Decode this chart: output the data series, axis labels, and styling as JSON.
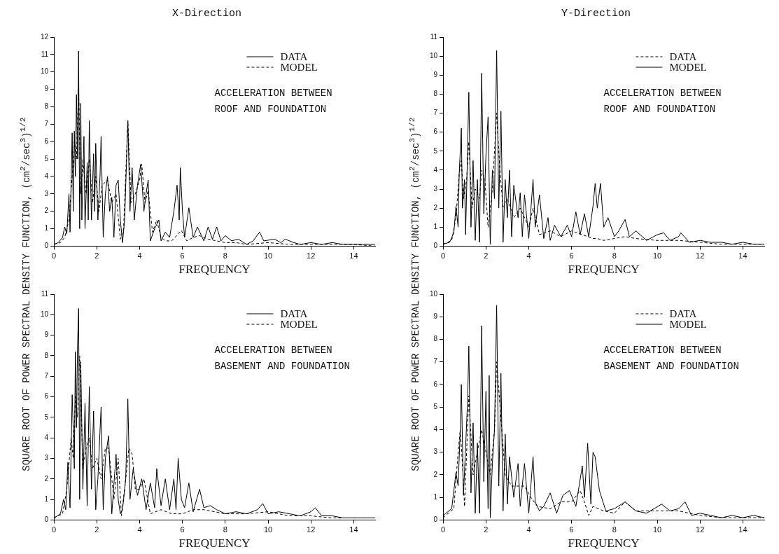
{
  "chart_data": [
    {
      "type": "line",
      "title": "X-Direction",
      "xlabel": "FREQUENCY",
      "ylabel": "SQUARE ROOT OF POWER SPECTRAL DENSITY FUNCTION,  (cm$^{2}$/sec$^{3}$)$^{1/2}$",
      "legend": "top right",
      "grid": false,
      "annotations": [
        "ACCELERATION BETWEEN\nROOF AND FOUNDATION"
      ],
      "xlim": [
        0,
        15
      ],
      "xticks": [
        0,
        2,
        4,
        6,
        8,
        10,
        12,
        14
      ],
      "ylim": [
        0,
        12
      ],
      "yticks": [
        0,
        1,
        2,
        3,
        4,
        5,
        6,
        7,
        8,
        9,
        10,
        11,
        12
      ],
      "series": [
        {
          "name": "DATA",
          "color": "#000000",
          "line_style": "solid",
          "x": [
            0,
            0.2,
            0.4,
            0.5,
            0.6,
            0.7,
            0.75,
            0.85,
            0.9,
            0.95,
            1.0,
            1.05,
            1.1,
            1.15,
            1.2,
            1.25,
            1.3,
            1.4,
            1.45,
            1.55,
            1.6,
            1.65,
            1.75,
            1.85,
            1.9,
            1.95,
            2.05,
            2.15,
            2.2,
            2.3,
            2.4,
            2.5,
            2.6,
            2.7,
            2.8,
            2.9,
            3.0,
            3.1,
            3.2,
            3.3,
            3.45,
            3.55,
            3.65,
            3.75,
            3.9,
            4.05,
            4.2,
            4.3,
            4.4,
            4.5,
            4.7,
            4.9,
            5.0,
            5.2,
            5.4,
            5.6,
            5.75,
            5.85,
            5.9,
            6.0,
            6.1,
            6.3,
            6.5,
            6.7,
            7.0,
            7.2,
            7.4,
            7.6,
            7.8,
            8.0,
            8.3,
            8.6,
            9.0,
            9.3,
            9.6,
            9.8,
            10.3,
            10.6,
            10.8,
            11.2,
            11.5,
            12.0,
            12.5,
            13.0,
            13.5,
            14.0,
            14.5,
            15.0
          ],
          "values": [
            0.1,
            0.2,
            0.5,
            1.1,
            0.7,
            3.0,
            0.8,
            6.5,
            2,
            6.6,
            4,
            8.7,
            5,
            11.2,
            1,
            8.2,
            1.5,
            6.3,
            1.0,
            4.8,
            1.5,
            7.2,
            1.5,
            5.3,
            2,
            5.9,
            1.5,
            4,
            6.3,
            0.5,
            3,
            4.0,
            2,
            2.8,
            0.5,
            3.5,
            3.8,
            1.5,
            0.2,
            1.5,
            7.2,
            2,
            4.5,
            1.5,
            3.5,
            4.7,
            2,
            3,
            3.8,
            0.3,
            1,
            1.5,
            0.3,
            0.8,
            0.5,
            2.0,
            3.5,
            1.5,
            4.5,
            2,
            0.5,
            2.2,
            0.5,
            1.1,
            0.3,
            1.1,
            0.4,
            1.1,
            0.3,
            0.6,
            0.3,
            0.4,
            0.1,
            0.3,
            0.8,
            0.3,
            0.4,
            0.2,
            0.4,
            0.2,
            0.1,
            0.2,
            0.1,
            0.2,
            0.1,
            0.1,
            0.1,
            0.1
          ]
        },
        {
          "name": "MODEL",
          "color": "#000000",
          "line_style": "dashed",
          "x": [
            0,
            0.3,
            0.5,
            0.7,
            0.85,
            0.95,
            1.05,
            1.15,
            1.25,
            1.35,
            1.5,
            1.65,
            1.8,
            1.95,
            2.1,
            2.25,
            2.5,
            2.7,
            2.9,
            3.1,
            3.25,
            3.45,
            3.6,
            3.8,
            4.0,
            4.1,
            4.25,
            4.4,
            4.6,
            4.8,
            5.0,
            5.2,
            5.5,
            5.8,
            5.95,
            6.2,
            6.5,
            6.8,
            7.2,
            7.6,
            8.0,
            8.5,
            9.0,
            10,
            11,
            12,
            13,
            14,
            15
          ],
          "values": [
            0.1,
            0.2,
            0.5,
            1.5,
            4,
            6,
            5,
            9,
            3,
            5,
            3,
            5,
            2.5,
            4,
            2,
            3.5,
            3.8,
            2.5,
            3,
            0.4,
            1,
            7.2,
            2.5,
            3,
            3.8,
            4.7,
            2.5,
            3.2,
            0.8,
            1.5,
            0.5,
            0.3,
            0.3,
            0.7,
            0.9,
            0.3,
            0.5,
            0.6,
            0.4,
            0.3,
            0.2,
            0.2,
            0.1,
            0.2,
            0.1,
            0.1,
            0.1,
            0.1,
            0
          ]
        }
      ]
    },
    {
      "type": "line",
      "title": "Y-Direction",
      "xlabel": "FREQUENCY",
      "ylabel": "SQUARE ROOT OF POWER SPECTRAL DENSITY FUNCTION,  (cm$^{2}$/sec$^{3}$)$^{1/2}$",
      "legend": "top right",
      "grid": false,
      "annotations": [
        "ACCELERATION BETWEEN\nROOF AND FOUNDATION"
      ],
      "xlim": [
        0,
        15
      ],
      "xticks": [
        0,
        2,
        4,
        6,
        8,
        10,
        12,
        14
      ],
      "ylim": [
        0,
        11
      ],
      "yticks": [
        0,
        1,
        2,
        3,
        4,
        5,
        6,
        7,
        8,
        9,
        10,
        11
      ],
      "series": [
        {
          "name": "DATA",
          "color": "#000000",
          "line_style": "dashed",
          "x": [
            0,
            0.4,
            0.6,
            0.75,
            0.85,
            0.95,
            1.1,
            1.2,
            1.35,
            1.5,
            1.7,
            1.8,
            1.95,
            2.1,
            2.3,
            2.5,
            2.65,
            2.8,
            3.0,
            3.3,
            3.6,
            4.0,
            4.2,
            4.5,
            5.0,
            5.5,
            6.0,
            6.5,
            7.0,
            7.2,
            7.5,
            8.0,
            8.5,
            9,
            10,
            11,
            12,
            13,
            14,
            15
          ],
          "values": [
            0.1,
            0.3,
            1.5,
            3.8,
            4.5,
            2.5,
            3.5,
            5.5,
            2,
            3,
            2.5,
            4,
            3.5,
            1,
            3,
            7,
            4,
            2,
            2.5,
            1.5,
            2,
            1,
            2,
            0.6,
            0.8,
            0.5,
            0.8,
            0.6,
            0.4,
            0.4,
            0.3,
            0.4,
            0.5,
            0.4,
            0.3,
            0.3,
            0.2,
            0.1,
            0.1,
            0.1
          ]
        },
        {
          "name": "MODEL",
          "color": "#000000",
          "line_style": "solid",
          "x": [
            0,
            0.3,
            0.5,
            0.6,
            0.7,
            0.75,
            0.85,
            0.9,
            1.0,
            1.05,
            1.15,
            1.2,
            1.3,
            1.4,
            1.5,
            1.6,
            1.7,
            1.8,
            1.9,
            2.0,
            2.1,
            2.2,
            2.3,
            2.4,
            2.5,
            2.6,
            2.7,
            2.8,
            2.9,
            3.0,
            3.1,
            3.2,
            3.3,
            3.5,
            3.6,
            3.7,
            3.8,
            4.0,
            4.2,
            4.3,
            4.5,
            4.7,
            4.9,
            5.0,
            5.2,
            5.5,
            5.8,
            6.0,
            6.2,
            6.4,
            6.6,
            6.8,
            7.0,
            7.1,
            7.2,
            7.35,
            7.5,
            7.7,
            8.0,
            8.2,
            8.5,
            8.7,
            9.0,
            9.5,
            10.0,
            10.3,
            10.6,
            11.0,
            11.1,
            11.5,
            12,
            12.5,
            13,
            13.5,
            14,
            14.5,
            15
          ],
          "values": [
            0.1,
            0.2,
            0.7,
            2.1,
            1.0,
            3.8,
            6.2,
            2,
            3.5,
            0.6,
            5.5,
            8.1,
            1,
            4.5,
            0.3,
            3.5,
            0.2,
            9.1,
            1.7,
            4.8,
            6.8,
            0.1,
            4,
            2.5,
            10.3,
            2,
            7.1,
            0.2,
            3.5,
            1.5,
            4,
            0.5,
            3.2,
            1.5,
            2.8,
            0.5,
            2.7,
            0.4,
            3.5,
            1,
            2.7,
            0.4,
            1.5,
            0.3,
            1.1,
            0.5,
            1.1,
            0.5,
            1.8,
            0.6,
            1.7,
            0.5,
            2.1,
            3.3,
            2,
            3.3,
            1.0,
            1.5,
            0.5,
            0.8,
            1.4,
            0.5,
            0.8,
            0.3,
            0.6,
            0.7,
            0.3,
            0.5,
            0.7,
            0.2,
            0.3,
            0.2,
            0.2,
            0.1,
            0.2,
            0.1,
            0.1
          ]
        }
      ]
    },
    {
      "type": "line",
      "xlabel": "FREQUENCY",
      "legend": "top right",
      "grid": false,
      "annotations": [
        "ACCELERATION BETWEEN\nBASEMENT AND FOUNDATION"
      ],
      "xlim": [
        0,
        15
      ],
      "xticks": [
        0,
        2,
        4,
        6,
        8,
        10,
        12,
        14
      ],
      "ylim": [
        0,
        11
      ],
      "yticks": [
        0,
        1,
        2,
        3,
        4,
        5,
        6,
        7,
        8,
        9,
        10,
        11
      ],
      "series": [
        {
          "name": "DATA",
          "color": "#000000",
          "line_style": "solid",
          "x": [
            0,
            0.3,
            0.45,
            0.55,
            0.65,
            0.75,
            0.85,
            0.95,
            1.0,
            1.05,
            1.1,
            1.15,
            1.2,
            1.25,
            1.35,
            1.45,
            1.55,
            1.65,
            1.75,
            1.85,
            1.95,
            2.05,
            2.2,
            2.3,
            2.4,
            2.55,
            2.7,
            2.9,
            3.0,
            3.1,
            3.2,
            3.35,
            3.45,
            3.55,
            3.7,
            3.9,
            4.1,
            4.3,
            4.5,
            4.7,
            4.8,
            5.0,
            5.2,
            5.4,
            5.6,
            5.7,
            5.8,
            5.95,
            6.1,
            6.3,
            6.5,
            6.8,
            7.0,
            7.3,
            7.6,
            8.0,
            8.5,
            9.0,
            9.5,
            9.75,
            10,
            10.5,
            11,
            11.5,
            12,
            12.2,
            12.5,
            13,
            13.5,
            14,
            14.5,
            15
          ],
          "values": [
            0.1,
            0.3,
            1,
            0.5,
            2.8,
            0.6,
            6.1,
            2.5,
            8.2,
            4.5,
            8.5,
            10.3,
            1,
            7.7,
            1.5,
            5.7,
            0.7,
            6.5,
            1.5,
            5.3,
            0.5,
            2,
            5.5,
            0.5,
            3,
            4.1,
            0.3,
            3.2,
            1,
            0.3,
            0.5,
            2,
            5.9,
            1,
            2.5,
            1.2,
            2,
            0.5,
            1.8,
            0.6,
            2.5,
            0.7,
            2,
            0.5,
            2,
            0.5,
            3.0,
            1,
            0.6,
            1.8,
            0.4,
            1.5,
            0.6,
            0.7,
            0.5,
            0.3,
            0.4,
            0.3,
            0.5,
            0.8,
            0.3,
            0.4,
            0.3,
            0.2,
            0.4,
            0.6,
            0.2,
            0.2,
            0.1,
            0.1,
            0.1,
            0.1
          ]
        },
        {
          "name": "MODEL",
          "color": "#000000",
          "line_style": "dashed",
          "x": [
            0,
            0.4,
            0.6,
            0.8,
            0.9,
            1.0,
            1.1,
            1.2,
            1.35,
            1.5,
            1.65,
            1.8,
            2.0,
            2.2,
            2.4,
            2.55,
            2.8,
            3.0,
            3.15,
            3.3,
            3.5,
            3.65,
            3.8,
            4.0,
            4.2,
            4.5,
            5.0,
            5.5,
            6.0,
            6.5,
            7,
            8,
            9,
            10,
            11,
            12,
            13,
            14,
            15
          ],
          "values": [
            0.1,
            0.3,
            1.5,
            4,
            3,
            6,
            5,
            8,
            2.5,
            3.5,
            4,
            2.5,
            3,
            2,
            3.5,
            3.5,
            1,
            3,
            0.2,
            1.5,
            3.5,
            3.2,
            1.5,
            1.5,
            2,
            0.3,
            0.5,
            0.3,
            0.3,
            0.5,
            0.5,
            0.3,
            0.3,
            0.4,
            0.2,
            0.2,
            0.1,
            0.1,
            0.1
          ]
        }
      ]
    },
    {
      "type": "line",
      "xlabel": "FREQUENCY",
      "legend": "top right",
      "grid": false,
      "annotations": [
        "ACCELERATION BETWEEN\nBASEMENT AND FOUNDATION"
      ],
      "xlim": [
        0,
        15
      ],
      "xticks": [
        0,
        2,
        4,
        6,
        8,
        10,
        12,
        14
      ],
      "ylim": [
        0,
        10
      ],
      "yticks": [
        0,
        1,
        2,
        3,
        4,
        5,
        6,
        7,
        8,
        9,
        10
      ],
      "series": [
        {
          "name": "DATA",
          "color": "#000000",
          "line_style": "dashed",
          "x": [
            0,
            0.5,
            0.7,
            0.8,
            0.9,
            1.0,
            1.2,
            1.4,
            1.6,
            1.8,
            2.0,
            2.2,
            2.4,
            2.5,
            2.7,
            2.9,
            3.2,
            3.5,
            3.8,
            4.1,
            4.4,
            5.0,
            5.5,
            6.0,
            6.4,
            6.6,
            6.8,
            7.0,
            7.5,
            8.0,
            8.5,
            9,
            10,
            11,
            12,
            13,
            14,
            15
          ],
          "values": [
            0.1,
            0.5,
            3,
            4,
            2.5,
            0.6,
            5.5,
            2,
            3,
            4,
            3,
            2,
            4,
            7,
            4.5,
            2,
            1.5,
            1.5,
            1.5,
            1,
            0.6,
            0.5,
            0.8,
            0.8,
            1.3,
            0.8,
            0.2,
            0.6,
            0.4,
            0.3,
            0.8,
            0.4,
            0.4,
            0.4,
            0.2,
            0.1,
            0.1,
            0.1
          ]
        },
        {
          "name": "MODEL",
          "color": "#000000",
          "line_style": "solid",
          "x": [
            0,
            0.4,
            0.6,
            0.7,
            0.8,
            0.85,
            0.95,
            1.05,
            1.15,
            1.2,
            1.3,
            1.4,
            1.5,
            1.6,
            1.7,
            1.8,
            1.9,
            2.0,
            2.1,
            2.15,
            2.2,
            2.3,
            2.4,
            2.5,
            2.6,
            2.7,
            2.8,
            2.9,
            3.0,
            3.1,
            3.3,
            3.5,
            3.6,
            3.8,
            4.0,
            4.2,
            4.3,
            4.5,
            4.7,
            5.0,
            5.3,
            5.6,
            5.9,
            6.2,
            6.5,
            6.6,
            6.75,
            6.9,
            7.0,
            7.1,
            7.3,
            7.6,
            8.0,
            8.5,
            9.0,
            9.5,
            10.2,
            10.6,
            11.0,
            11.3,
            11.6,
            12,
            12.5,
            13,
            13.5,
            14,
            14.5,
            15
          ],
          "values": [
            0.2,
            0.5,
            2.1,
            1.5,
            4,
            6.0,
            1.1,
            3.2,
            5.5,
            7.7,
            1.2,
            4.3,
            0.3,
            3.4,
            0.3,
            8.6,
            1.7,
            5.7,
            0.5,
            6.4,
            0.1,
            2.5,
            4,
            9.5,
            1.5,
            6.5,
            0.4,
            3.8,
            0.7,
            2.8,
            1.0,
            2.5,
            0.6,
            2.5,
            0.3,
            2.8,
            0.8,
            0.4,
            0.6,
            1.2,
            0.3,
            1.1,
            1.3,
            0.6,
            2.4,
            1.0,
            3.4,
            0.7,
            3.0,
            2.8,
            1.3,
            0.4,
            0.5,
            0.8,
            0.4,
            0.3,
            0.7,
            0.4,
            0.5,
            0.8,
            0.2,
            0.3,
            0.2,
            0.1,
            0.2,
            0.1,
            0.2,
            0.1
          ]
        }
      ]
    }
  ]
}
